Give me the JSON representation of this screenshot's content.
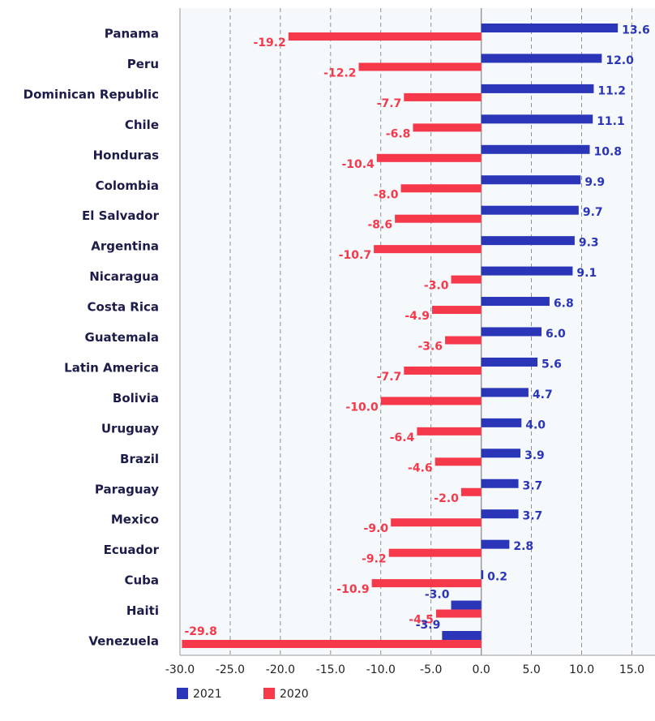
{
  "chart_data": {
    "type": "bar",
    "orientation": "horizontal",
    "categories": [
      "Panama",
      "Peru",
      "Dominican Republic",
      "Chile",
      "Honduras",
      "Colombia",
      "El Salvador",
      "Argentina",
      "Nicaragua",
      "Costa Rica",
      "Guatemala",
      "Latin America",
      "Bolivia",
      "Uruguay",
      "Brazil",
      "Paraguay",
      "Mexico",
      "Ecuador",
      "Cuba",
      "Haiti",
      "Venezuela"
    ],
    "series": [
      {
        "name": "2021",
        "color": "#2a35b8",
        "values": [
          13.6,
          12.0,
          11.2,
          11.1,
          10.8,
          9.9,
          9.7,
          9.3,
          9.1,
          6.8,
          6.0,
          5.6,
          4.7,
          4.0,
          3.9,
          3.7,
          3.7,
          2.8,
          0.2,
          -3.0,
          -3.9
        ],
        "value_labels": [
          "13.6",
          "12.0",
          "11.2",
          "11.1",
          "10.8",
          "9.9",
          "9.7",
          "9.3",
          "9.1",
          "6.8",
          "6.0",
          "5.6",
          "4.7",
          "4.0",
          "3.9",
          "3.7",
          "3.7",
          "2.8",
          "0.2",
          "-3.0",
          "-3.9"
        ]
      },
      {
        "name": "2020",
        "color": "#f5394b",
        "values": [
          -19.2,
          -12.2,
          -7.7,
          -6.8,
          -10.4,
          -8.0,
          -8.6,
          -10.7,
          -3.0,
          -4.9,
          -3.6,
          -7.7,
          -10.0,
          -6.4,
          -4.6,
          -2.0,
          -9.0,
          -9.2,
          -10.9,
          -4.5,
          -29.8
        ],
        "value_labels": [
          "-19.2",
          "-12.2",
          "-7.7",
          "-6.8",
          "-10.4",
          "-8.0",
          "-8.6",
          "-10.7",
          "-3.0",
          "-4.9",
          "-3.6",
          "-7.7",
          "-10.0",
          "-6.4",
          "-4.6",
          "-2.0",
          "-9.0",
          "-9.2",
          "-10.9",
          "-4.5",
          "-29.8"
        ]
      }
    ],
    "xlim": [
      -30,
      17.3
    ],
    "xticks": [
      {
        "value": -30,
        "label": "-30.0"
      },
      {
        "value": -25,
        "label": "-25.0"
      },
      {
        "value": -20,
        "label": "-20.0"
      },
      {
        "value": -15,
        "label": "-15.0"
      },
      {
        "value": -10,
        "label": "-10.0"
      },
      {
        "value": -5,
        "label": "-5.0"
      },
      {
        "value": 0,
        "label": "0.0"
      },
      {
        "value": 5,
        "label": "5.0"
      },
      {
        "value": 10,
        "label": "10.0"
      },
      {
        "value": 15,
        "label": "15.0"
      }
    ],
    "grid": true,
    "legend": "bottom"
  }
}
